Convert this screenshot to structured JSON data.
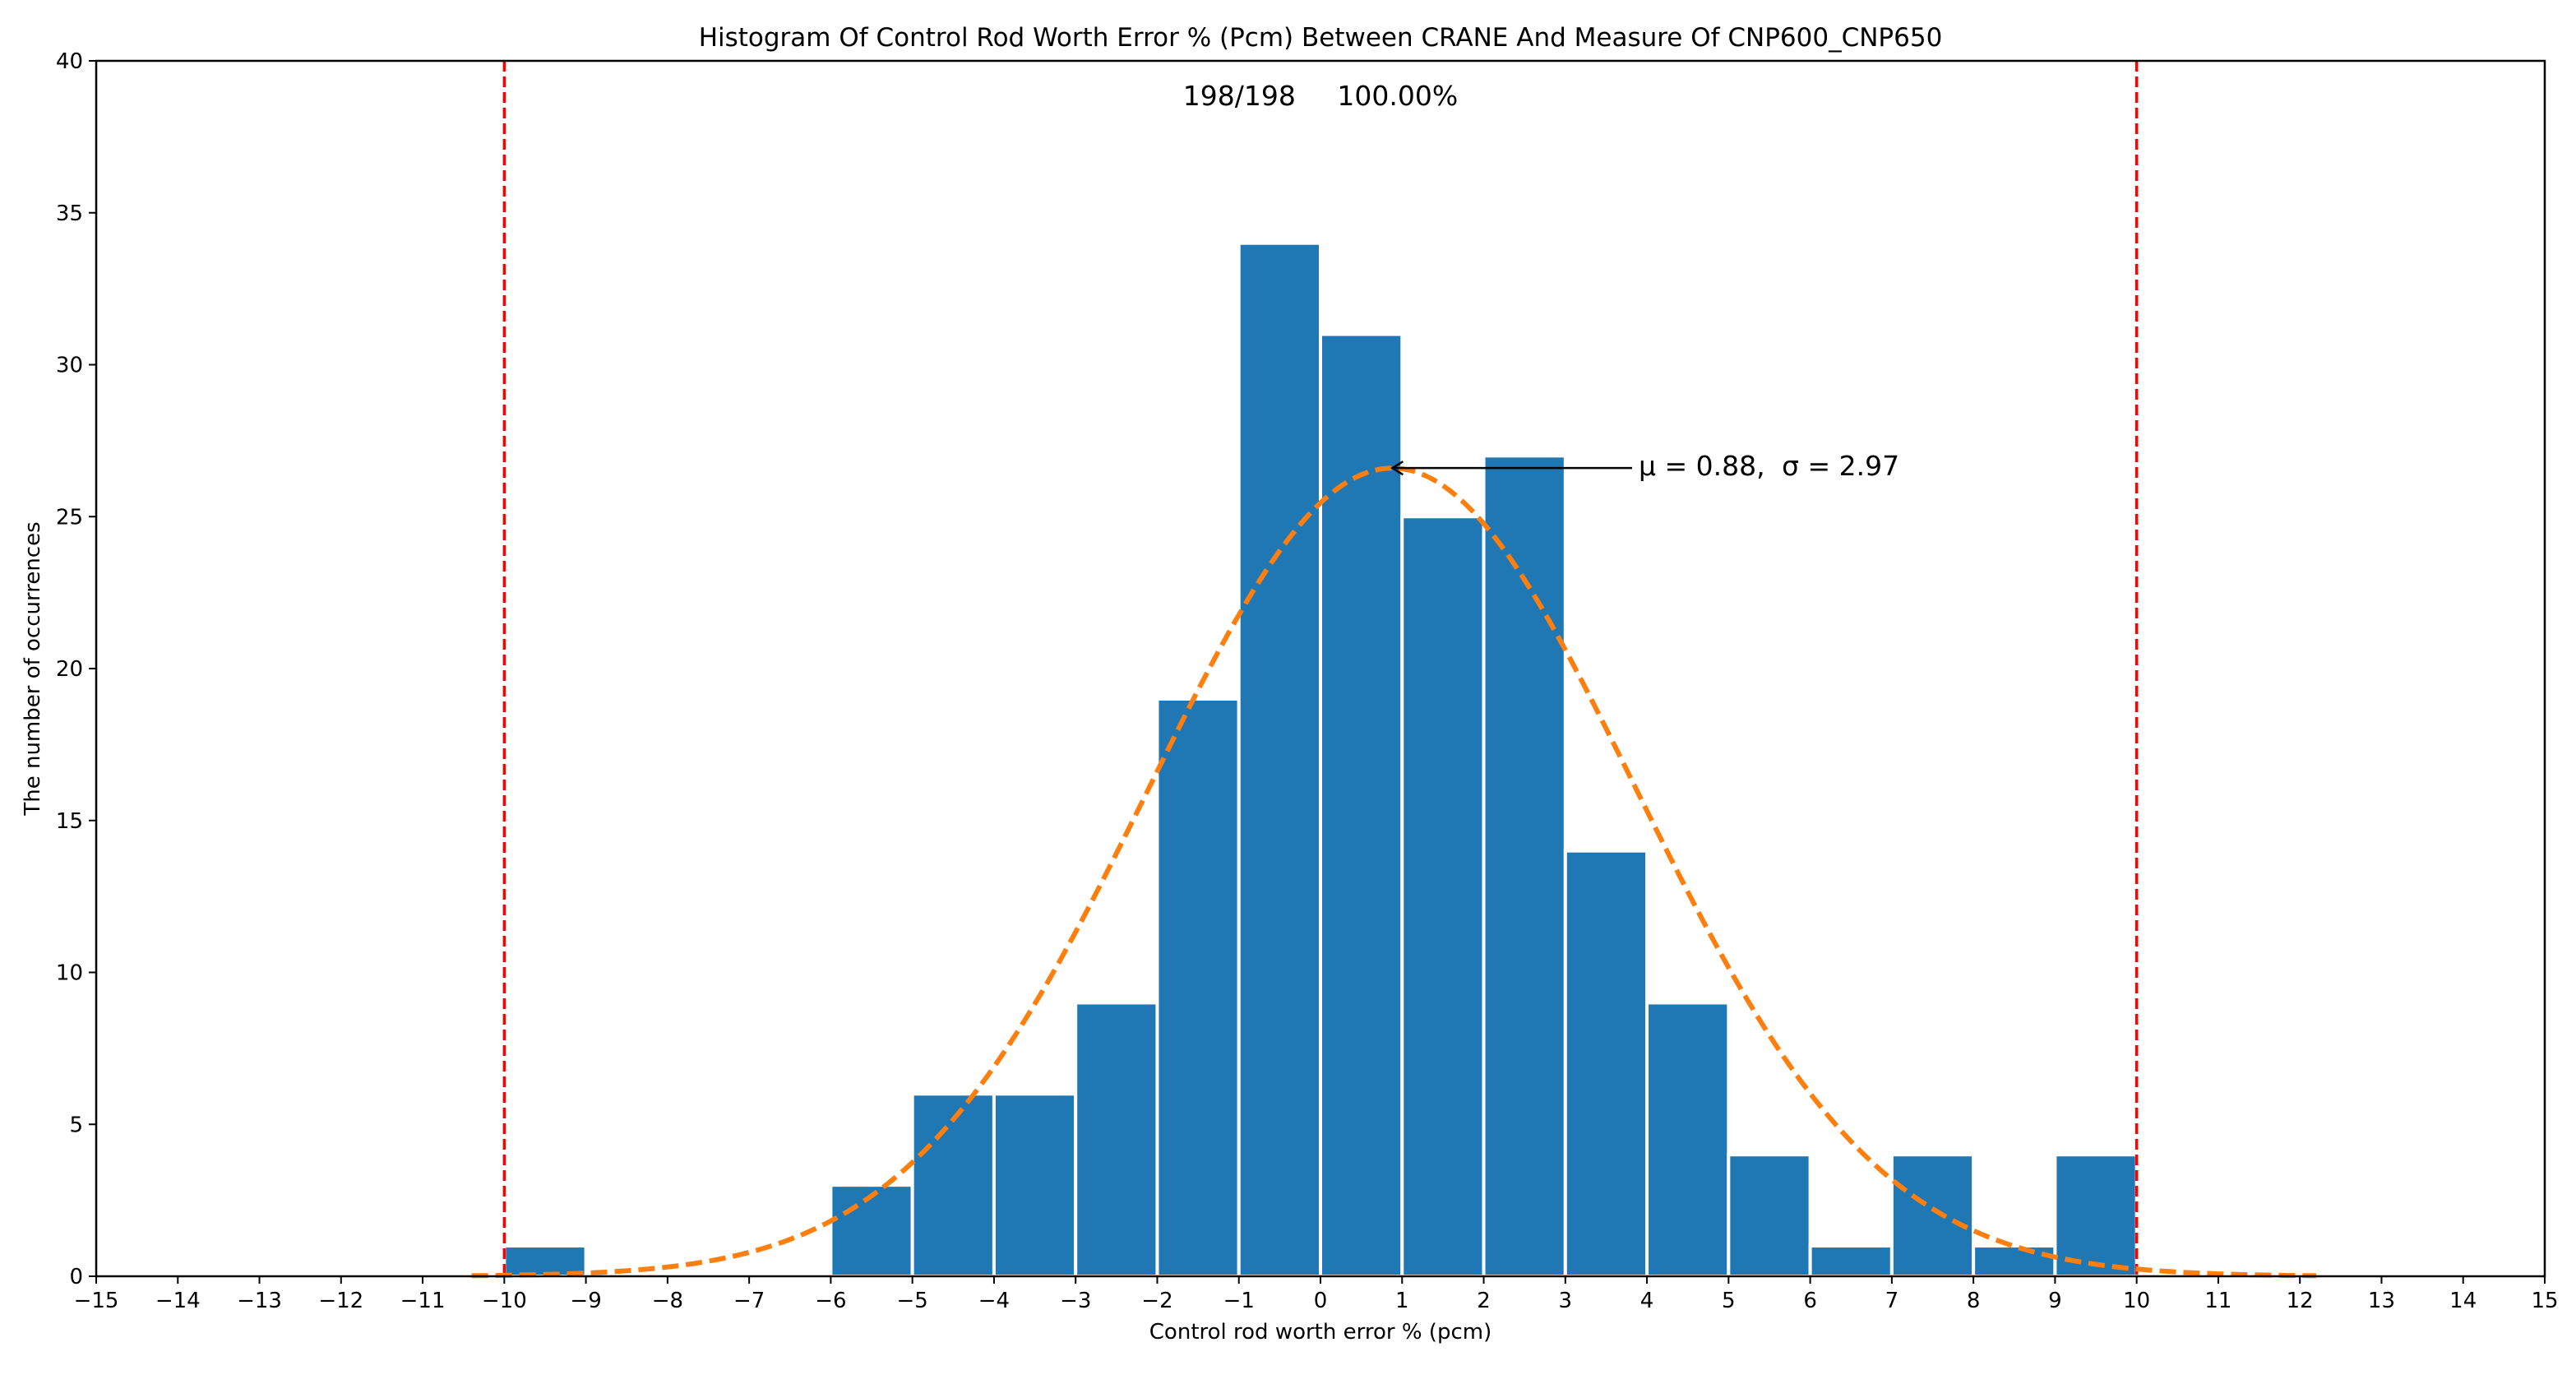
{
  "chart_data": {
    "type": "bar",
    "title": "Histogram Of Control Rod Worth Error % (Pcm) Between CRANE And Measure Of CNP600_CNP650",
    "xlabel": "Control rod worth error % (pcm)",
    "ylabel": "The number of occurrences",
    "xlim": [
      -15,
      15
    ],
    "ylim": [
      0,
      40
    ],
    "xticks": [
      -15,
      -14,
      -13,
      -12,
      -11,
      -10,
      -9,
      -8,
      -7,
      -6,
      -5,
      -4,
      -3,
      -2,
      -1,
      0,
      1,
      2,
      3,
      4,
      5,
      6,
      7,
      8,
      9,
      10,
      11,
      12,
      13,
      14,
      15
    ],
    "xtick_labels": [
      "−15",
      "−14",
      "−13",
      "−12",
      "−11",
      "−10",
      "−9",
      "−8",
      "−7",
      "−6",
      "−5",
      "−4",
      "−3",
      "−2",
      "−1",
      "0",
      "1",
      "2",
      "3",
      "4",
      "5",
      "6",
      "7",
      "8",
      "9",
      "10",
      "11",
      "12",
      "13",
      "14",
      "15"
    ],
    "yticks": [
      0,
      5,
      10,
      15,
      20,
      25,
      30,
      35,
      40
    ],
    "ytick_labels": [
      "0",
      "5",
      "10",
      "15",
      "20",
      "25",
      "30",
      "35",
      "40"
    ],
    "bins": [
      {
        "start": -10,
        "end": -9,
        "count": 1
      },
      {
        "start": -6,
        "end": -5,
        "count": 3
      },
      {
        "start": -5,
        "end": -4,
        "count": 6
      },
      {
        "start": -4,
        "end": -3,
        "count": 6
      },
      {
        "start": -3,
        "end": -2,
        "count": 9
      },
      {
        "start": -2,
        "end": -1,
        "count": 19
      },
      {
        "start": -1,
        "end": 0,
        "count": 34
      },
      {
        "start": 0,
        "end": 1,
        "count": 31
      },
      {
        "start": 1,
        "end": 2,
        "count": 25
      },
      {
        "start": 2,
        "end": 3,
        "count": 27
      },
      {
        "start": 3,
        "end": 4,
        "count": 14
      },
      {
        "start": 4,
        "end": 5,
        "count": 9
      },
      {
        "start": 5,
        "end": 6,
        "count": 4
      },
      {
        "start": 6,
        "end": 7,
        "count": 1
      },
      {
        "start": 7,
        "end": 8,
        "count": 4
      },
      {
        "start": 8,
        "end": 9,
        "count": 1
      },
      {
        "start": 9,
        "end": 10,
        "count": 4
      }
    ],
    "normal_fit": {
      "mu": 0.88,
      "sigma": 2.97,
      "total": 198,
      "x_range": [
        -10.4,
        12.2
      ],
      "color": "#ff7f0e",
      "style": "dashed"
    },
    "limit_lines": {
      "x": [
        -10,
        10
      ],
      "color": "#ff0000",
      "style": "dashed"
    },
    "bar_color": "#1f77b4",
    "annotations": {
      "count_text": "198/198",
      "percent_text": "100.00%",
      "stats_mu_label": "μ = 0.88,",
      "stats_sigma_label": "σ = 2.97",
      "arrow_target": {
        "x": 0.88,
        "y": 26.6
      }
    },
    "grid": false,
    "legend": "none"
  }
}
